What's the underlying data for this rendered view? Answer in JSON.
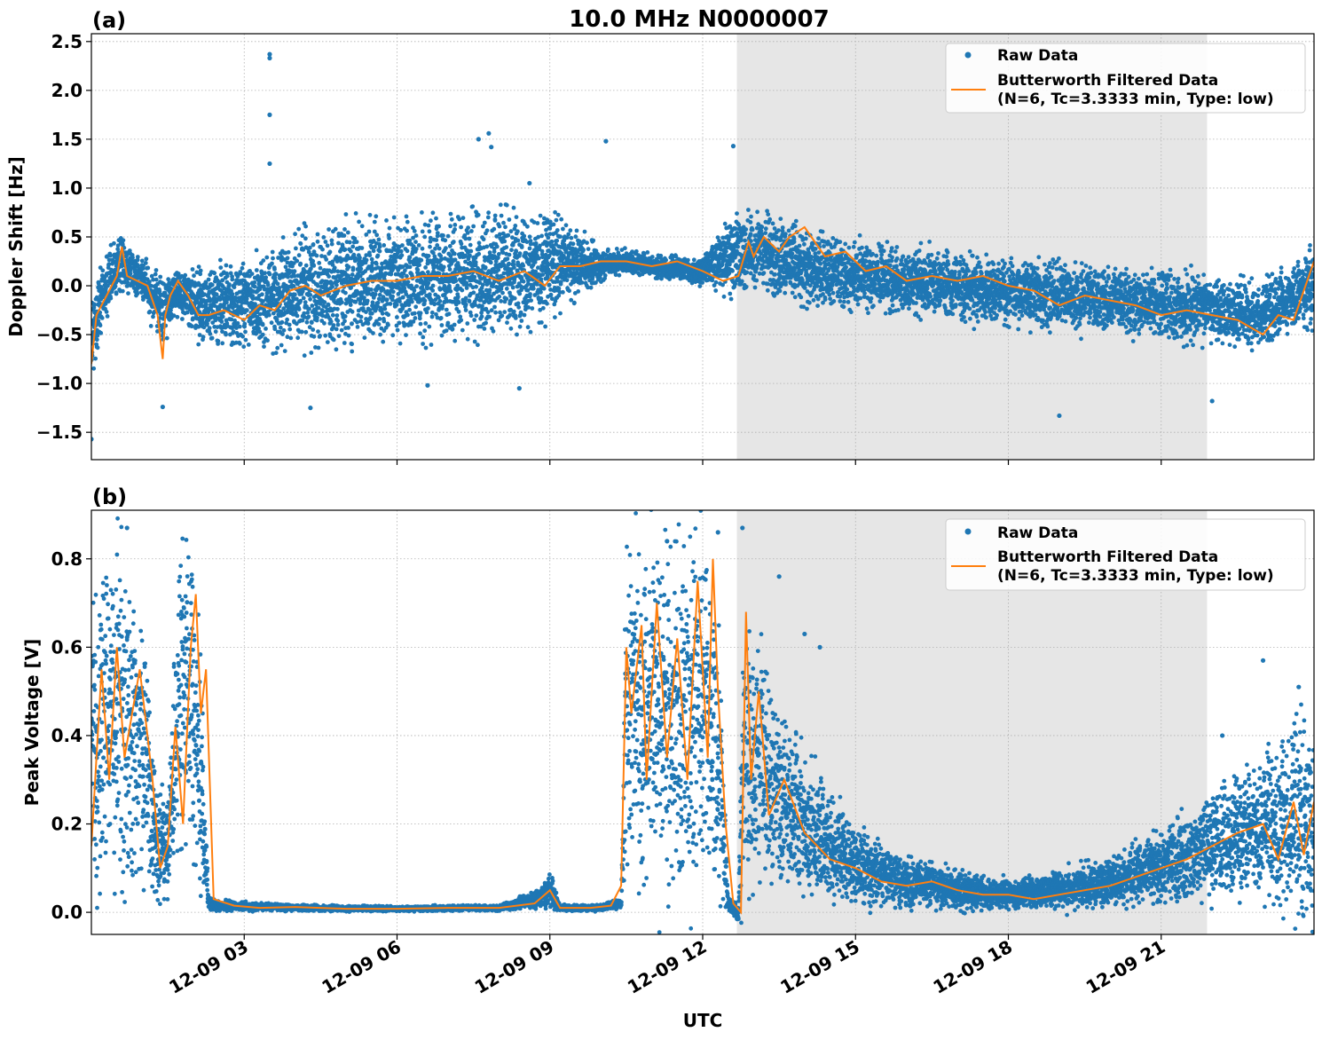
{
  "figure": {
    "title": "10.0 MHz N0000007",
    "xlabel": "UTC",
    "x_tick_labels": [
      "12-09 03",
      "12-09 06",
      "12-09 09",
      "12-09 12",
      "12-09 15",
      "12-09 18",
      "12-09 21"
    ]
  },
  "colors": {
    "raw": "#1f77b4",
    "filtered": "#ff7f0e",
    "shade": "#e6e6e6",
    "grid": "#b0b0b0"
  },
  "legend": {
    "raw_label": "Raw Data",
    "filtered_label_line1": "Butterworth Filtered Data",
    "filtered_label_line2": "(N=6, Tc=3.3333 min, Type: low)"
  },
  "chart_data": [
    {
      "type": "scatter",
      "panel_label": "(a)",
      "ylabel": "Doppler Shift [Hz]",
      "x_unit": "UTC hour on 12-09",
      "xlim": [
        0,
        24
      ],
      "ylim": [
        -1.78,
        2.58
      ],
      "yticks": [
        -1.5,
        -1.0,
        -0.5,
        0.0,
        0.5,
        1.0,
        1.5,
        2.0,
        2.5
      ],
      "ytick_labels": [
        "−1.5",
        "−1.0",
        "−0.5",
        "0.0",
        "0.5",
        "1.0",
        "1.5",
        "2.0",
        "2.5"
      ],
      "xticks": [
        3,
        6,
        9,
        12,
        15,
        18,
        21
      ],
      "shaded_span": [
        12.67,
        21.9
      ],
      "grid": true,
      "legend_position": "upper right",
      "series": [
        {
          "name": "Raw Data",
          "kind": "points",
          "band": {
            "x": [
              0,
              0.2,
              0.6,
              1.0,
              1.4,
              1.7,
              2.2,
              3.0,
              4.0,
              5.0,
              6.0,
              7.0,
              8.0,
              9.0,
              10.0,
              10.5,
              11.0,
              12.0,
              12.5,
              13.0,
              14.0,
              15.0,
              16.0,
              17.0,
              18.0,
              19.0,
              20.0,
              21.0,
              22.0,
              23.0,
              24.0
            ],
            "center": [
              -0.6,
              -0.1,
              0.25,
              0.05,
              -0.25,
              -0.05,
              -0.2,
              -0.2,
              -0.05,
              0.0,
              0.05,
              0.1,
              0.15,
              0.2,
              0.22,
              0.25,
              0.2,
              0.15,
              0.3,
              0.35,
              0.2,
              0.1,
              0.05,
              0.0,
              -0.05,
              -0.1,
              -0.15,
              -0.2,
              -0.25,
              -0.3,
              0.0
            ],
            "halfwidth": [
              0.5,
              0.3,
              0.25,
              0.2,
              0.3,
              0.2,
              0.35,
              0.4,
              0.5,
              0.55,
              0.55,
              0.55,
              0.55,
              0.5,
              0.15,
              0.1,
              0.1,
              0.12,
              0.35,
              0.35,
              0.35,
              0.3,
              0.3,
              0.3,
              0.3,
              0.3,
              0.3,
              0.3,
              0.3,
              0.3,
              0.35
            ]
          },
          "outliers": [
            {
              "x": 3.5,
              "y": 2.37
            },
            {
              "x": 3.5,
              "y": 2.33
            },
            {
              "x": 3.5,
              "y": 1.75
            },
            {
              "x": 3.5,
              "y": 1.25
            },
            {
              "x": 0.0,
              "y": -1.57
            },
            {
              "x": 1.4,
              "y": -1.24
            },
            {
              "x": 4.3,
              "y": -1.25
            },
            {
              "x": 7.8,
              "y": 1.56
            },
            {
              "x": 7.6,
              "y": 1.5
            },
            {
              "x": 7.85,
              "y": 1.42
            },
            {
              "x": 10.1,
              "y": 1.48
            },
            {
              "x": 12.6,
              "y": 1.43
            },
            {
              "x": 8.6,
              "y": 1.05
            },
            {
              "x": 19.0,
              "y": -1.33
            },
            {
              "x": 22.0,
              "y": -1.18
            },
            {
              "x": 6.6,
              "y": -1.02
            },
            {
              "x": 8.4,
              "y": -1.05
            }
          ]
        },
        {
          "name": "Butterworth Filtered Data (N=6, Tc=3.3333 min, Type: low)",
          "kind": "line",
          "x": [
            0,
            0.1,
            0.3,
            0.5,
            0.6,
            0.7,
            0.9,
            1.1,
            1.3,
            1.4,
            1.45,
            1.55,
            1.7,
            1.9,
            2.1,
            2.3,
            2.6,
            3.0,
            3.3,
            3.6,
            3.9,
            4.2,
            4.5,
            5.0,
            5.5,
            6.0,
            6.5,
            7.0,
            7.5,
            8.0,
            8.5,
            8.9,
            9.2,
            9.6,
            10.0,
            10.5,
            11.0,
            11.5,
            12.0,
            12.4,
            12.7,
            12.9,
            13.0,
            13.2,
            13.5,
            13.7,
            14.0,
            14.4,
            14.8,
            15.2,
            15.6,
            16.0,
            16.5,
            17.0,
            17.5,
            18.0,
            18.5,
            19.0,
            19.5,
            20.0,
            20.5,
            21.0,
            21.5,
            22.0,
            22.5,
            23.0,
            23.3,
            23.6,
            24.0
          ],
          "y": [
            -0.8,
            -0.3,
            -0.1,
            0.1,
            0.4,
            0.1,
            0.05,
            0.0,
            -0.3,
            -0.75,
            -0.3,
            -0.1,
            0.05,
            -0.1,
            -0.3,
            -0.3,
            -0.25,
            -0.35,
            -0.2,
            -0.25,
            -0.05,
            0.0,
            -0.1,
            0.0,
            0.05,
            0.05,
            0.1,
            0.1,
            0.15,
            0.05,
            0.15,
            0.0,
            0.2,
            0.2,
            0.25,
            0.25,
            0.2,
            0.25,
            0.15,
            0.05,
            0.1,
            0.45,
            0.3,
            0.5,
            0.35,
            0.5,
            0.6,
            0.3,
            0.35,
            0.15,
            0.2,
            0.05,
            0.1,
            0.05,
            0.1,
            0.0,
            -0.05,
            -0.2,
            -0.1,
            -0.15,
            -0.2,
            -0.3,
            -0.25,
            -0.3,
            -0.35,
            -0.5,
            -0.3,
            -0.35,
            0.25
          ]
        }
      ]
    },
    {
      "type": "scatter",
      "panel_label": "(b)",
      "ylabel": "Peak Voltage [V]",
      "x_unit": "UTC hour on 12-09",
      "xlim": [
        0,
        24
      ],
      "ylim": [
        -0.05,
        0.91
      ],
      "yticks": [
        0.0,
        0.2,
        0.4,
        0.6,
        0.8
      ],
      "ytick_labels": [
        "0.0",
        "0.2",
        "0.4",
        "0.6",
        "0.8"
      ],
      "xticks": [
        3,
        6,
        9,
        12,
        15,
        18,
        21
      ],
      "shaded_span": [
        12.67,
        21.9
      ],
      "grid": true,
      "legend_position": "upper right",
      "series": [
        {
          "name": "Raw Data",
          "kind": "points",
          "band": {
            "x": [
              0,
              0.3,
              0.7,
              1.0,
              1.3,
              1.5,
              1.7,
              1.9,
              2.1,
              2.3,
              2.5,
              4.0,
              6.0,
              8.0,
              8.8,
              9.0,
              9.2,
              10.0,
              10.4,
              10.5,
              11.0,
              11.5,
              12.0,
              12.3,
              12.5,
              12.7,
              12.8,
              13.0,
              14.0,
              15.0,
              16.0,
              17.0,
              18.0,
              19.0,
              20.0,
              21.0,
              22.0,
              23.0,
              24.0
            ],
            "center": [
              0.4,
              0.45,
              0.45,
              0.35,
              0.15,
              0.15,
              0.45,
              0.5,
              0.4,
              0.02,
              0.015,
              0.01,
              0.008,
              0.01,
              0.03,
              0.05,
              0.01,
              0.01,
              0.02,
              0.45,
              0.45,
              0.45,
              0.45,
              0.35,
              0.02,
              0.0,
              0.35,
              0.35,
              0.2,
              0.1,
              0.07,
              0.05,
              0.04,
              0.05,
              0.07,
              0.1,
              0.15,
              0.2,
              0.2
            ],
            "halfwidth": [
              0.3,
              0.35,
              0.35,
              0.3,
              0.12,
              0.12,
              0.3,
              0.3,
              0.3,
              0.015,
              0.01,
              0.006,
              0.005,
              0.006,
              0.02,
              0.04,
              0.006,
              0.006,
              0.01,
              0.35,
              0.35,
              0.35,
              0.35,
              0.3,
              0.015,
              0.02,
              0.3,
              0.25,
              0.15,
              0.08,
              0.05,
              0.04,
              0.03,
              0.04,
              0.05,
              0.07,
              0.1,
              0.15,
              0.2
            ]
          },
          "outliers": [
            {
              "x": 12.78,
              "y": 0.87
            },
            {
              "x": 12.3,
              "y": 0.86
            },
            {
              "x": 11.3,
              "y": 0.84
            },
            {
              "x": 0.7,
              "y": 0.87
            },
            {
              "x": 13.5,
              "y": 0.76
            },
            {
              "x": 14.0,
              "y": 0.63
            },
            {
              "x": 14.3,
              "y": 0.6
            },
            {
              "x": 23.0,
              "y": 0.57
            },
            {
              "x": 23.7,
              "y": 0.51
            },
            {
              "x": 22.2,
              "y": 0.4
            }
          ]
        },
        {
          "name": "Butterworth Filtered Data (N=6, Tc=3.3333 min, Type: low)",
          "kind": "line",
          "x": [
            0,
            0.1,
            0.2,
            0.35,
            0.5,
            0.65,
            0.8,
            0.95,
            1.1,
            1.2,
            1.35,
            1.5,
            1.65,
            1.8,
            1.95,
            2.05,
            2.15,
            2.25,
            2.4,
            2.8,
            3.3,
            4.0,
            5.0,
            6.0,
            7.0,
            8.0,
            8.7,
            8.9,
            9.0,
            9.2,
            9.8,
            10.2,
            10.4,
            10.5,
            10.6,
            10.8,
            10.9,
            11.1,
            11.3,
            11.5,
            11.7,
            11.9,
            12.1,
            12.2,
            12.3,
            12.45,
            12.6,
            12.75,
            12.85,
            12.95,
            13.1,
            13.3,
            13.6,
            14.0,
            14.5,
            15.0,
            15.5,
            16.0,
            16.5,
            17.0,
            17.5,
            18.0,
            18.5,
            19.0,
            19.5,
            20.0,
            20.5,
            21.0,
            21.5,
            22.0,
            22.5,
            23.0,
            23.3,
            23.6,
            23.8,
            24.0
          ],
          "y": [
            0.15,
            0.35,
            0.55,
            0.3,
            0.6,
            0.35,
            0.45,
            0.55,
            0.4,
            0.3,
            0.1,
            0.15,
            0.42,
            0.2,
            0.6,
            0.72,
            0.45,
            0.55,
            0.03,
            0.015,
            0.01,
            0.012,
            0.008,
            0.008,
            0.01,
            0.01,
            0.02,
            0.04,
            0.05,
            0.01,
            0.01,
            0.015,
            0.06,
            0.6,
            0.45,
            0.65,
            0.3,
            0.7,
            0.35,
            0.62,
            0.3,
            0.75,
            0.35,
            0.8,
            0.5,
            0.2,
            0.02,
            0.0,
            0.68,
            0.3,
            0.5,
            0.22,
            0.3,
            0.18,
            0.12,
            0.1,
            0.07,
            0.06,
            0.07,
            0.05,
            0.04,
            0.04,
            0.03,
            0.04,
            0.05,
            0.06,
            0.08,
            0.1,
            0.12,
            0.15,
            0.18,
            0.2,
            0.12,
            0.25,
            0.13,
            0.25
          ]
        }
      ]
    }
  ]
}
